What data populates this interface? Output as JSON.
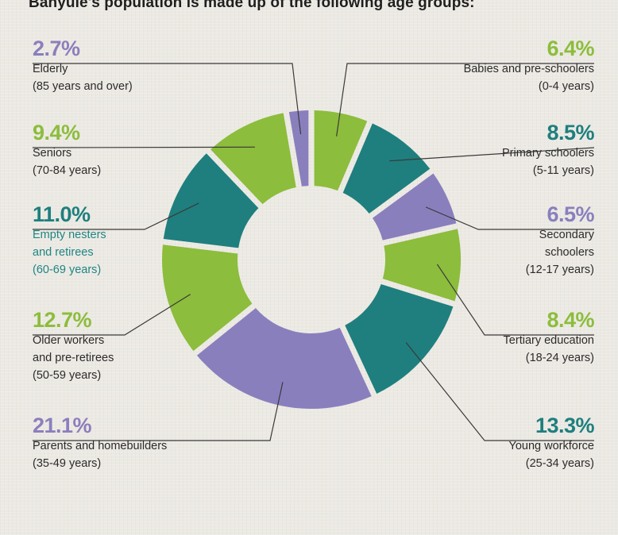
{
  "title": "Banyule's population is made up of the following age groups:",
  "colors": {
    "purple": "#8a7fbd",
    "green": "#8cbd3c",
    "teal": "#1e7f7e",
    "background": "#ece9e3"
  },
  "chart_data": {
    "type": "pie",
    "style": "donut",
    "title": "Banyule's population is made up of the following age groups:",
    "slices": [
      {
        "label": "Babies and pre-schoolers (0-4 years)",
        "value": 6.4,
        "color": "#8cbd3c"
      },
      {
        "label": "Primary schoolers (5-11 years)",
        "value": 8.5,
        "color": "#1e7f7e"
      },
      {
        "label": "Secondary schoolers (12-17 years)",
        "value": 6.5,
        "color": "#8a7fbd"
      },
      {
        "label": "Tertiary education (18-24 years)",
        "value": 8.4,
        "color": "#8cbd3c"
      },
      {
        "label": "Young workforce (25-34 years)",
        "value": 13.3,
        "color": "#1e7f7e"
      },
      {
        "label": "Parents and homebuilders (35-49 years)",
        "value": 21.1,
        "color": "#8a7fbd"
      },
      {
        "label": "Older workers and pre-retirees (50-59 years)",
        "value": 12.7,
        "color": "#8cbd3c"
      },
      {
        "label": "Empty nesters and retirees (60-69 years)",
        "value": 11.0,
        "color": "#1e7f7e"
      },
      {
        "label": "Seniors (70-84 years)",
        "value": 9.4,
        "color": "#8cbd3c"
      },
      {
        "label": "Elderly (85 years and over)",
        "value": 2.7,
        "color": "#8a7fbd"
      }
    ]
  },
  "labels": [
    {
      "pct": "6.4%",
      "desc": "Babies and pre-schoolers\n(0-4 years)"
    },
    {
      "pct": "8.5%",
      "desc": "Primary schoolers\n(5-11 years)"
    },
    {
      "pct": "6.5%",
      "desc": "Secondary\nschoolers\n(12-17 years)"
    },
    {
      "pct": "8.4%",
      "desc": "Tertiary education\n(18-24 years)"
    },
    {
      "pct": "13.3%",
      "desc": "Young workforce\n(25-34 years)"
    },
    {
      "pct": "21.1%",
      "desc": "Parents and homebuilders\n(35-49 years)"
    },
    {
      "pct": "12.7%",
      "desc": "Older workers\nand pre-retirees\n(50-59 years)"
    },
    {
      "pct": "11.0%",
      "desc": "Empty nesters\nand retirees\n(60-69 years)"
    },
    {
      "pct": "9.4%",
      "desc": "Seniors\n(70-84 years)"
    },
    {
      "pct": "2.7%",
      "desc": "Elderly\n(85 years and over)"
    }
  ]
}
